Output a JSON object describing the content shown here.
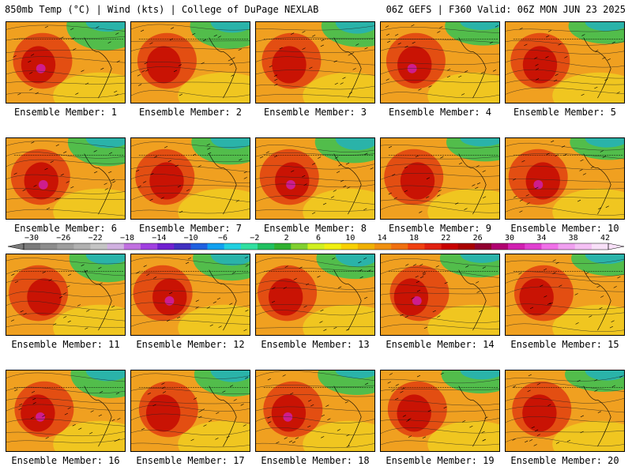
{
  "header": {
    "left": "850mb Temp (°C) | Wind (kts) | College of DuPage NEXLAB",
    "right": "06Z GEFS | F360 Valid: 06Z MON JUN 23 2025"
  },
  "panels": [
    {
      "caption": "Ensemble Member: 1"
    },
    {
      "caption": "Ensemble Member: 2"
    },
    {
      "caption": "Ensemble Member: 3"
    },
    {
      "caption": "Ensemble Member: 4"
    },
    {
      "caption": "Ensemble Member: 5"
    },
    {
      "caption": "Ensemble Member: 6"
    },
    {
      "caption": "Ensemble Member: 7"
    },
    {
      "caption": "Ensemble Member: 8"
    },
    {
      "caption": "Ensemble Member: 9"
    },
    {
      "caption": "Ensemble Member: 10"
    },
    {
      "caption": "Ensemble Member: 11"
    },
    {
      "caption": "Ensemble Member: 12"
    },
    {
      "caption": "Ensemble Member: 13"
    },
    {
      "caption": "Ensemble Member: 14"
    },
    {
      "caption": "Ensemble Member: 15"
    },
    {
      "caption": "Ensemble Member: 16"
    },
    {
      "caption": "Ensemble Member: 17"
    },
    {
      "caption": "Ensemble Member: 18"
    },
    {
      "caption": "Ensemble Member: 19"
    },
    {
      "caption": "Ensemble Member: 20"
    }
  ],
  "colorbar": {
    "labels": [
      "−30",
      "−26",
      "−22",
      "−18",
      "−14",
      "−10",
      "−6",
      "−2",
      "2",
      "6",
      "10",
      "14",
      "18",
      "22",
      "26",
      "30",
      "34",
      "38",
      "42"
    ],
    "colors": [
      "#7a7a7a",
      "#8c8c8c",
      "#9e9e9e",
      "#b0b0b0",
      "#c4c4c4",
      "#d0b0e0",
      "#c070e0",
      "#a040e0",
      "#7020d0",
      "#4030c0",
      "#2060e0",
      "#10a0f0",
      "#20d0e0",
      "#30e0a0",
      "#20c060",
      "#30b030",
      "#80d030",
      "#d0f020",
      "#f0f010",
      "#f8d000",
      "#f0b000",
      "#f09010",
      "#f07010",
      "#f04010",
      "#e02010",
      "#c80000",
      "#a80000",
      "#900030",
      "#b00070",
      "#d020b0",
      "#e040d0",
      "#f070e8",
      "#f0a0f0",
      "#f4c0f4",
      "#f8e0f8"
    ]
  }
}
